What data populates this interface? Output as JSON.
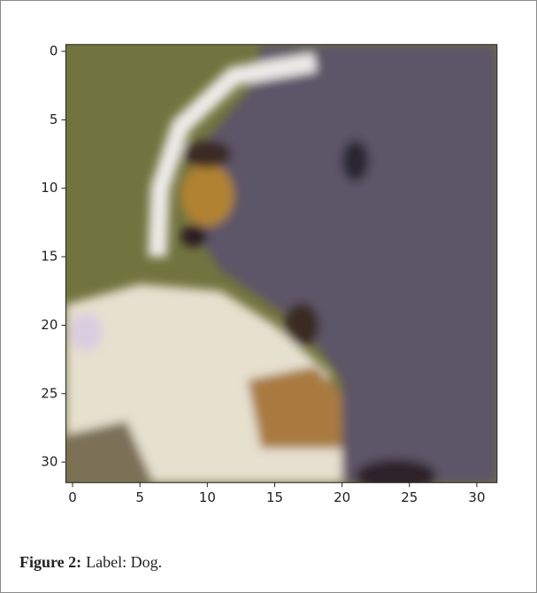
{
  "figure": {
    "image": {
      "xlim": [
        -0.5,
        31.5
      ],
      "ylim": [
        31.5,
        -0.5
      ],
      "xticks": [
        0,
        5,
        10,
        15,
        20,
        25,
        30
      ],
      "yticks": [
        0,
        5,
        10,
        15,
        20,
        25,
        30
      ]
    },
    "caption": {
      "label": "Figure 2:",
      "text": "Label: Dog."
    }
  }
}
